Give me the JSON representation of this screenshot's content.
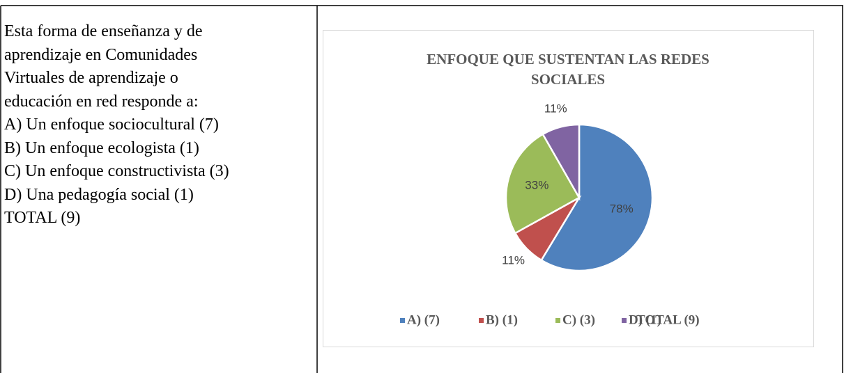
{
  "text_lines": [
    "Esta forma de enseñanza y de",
    "aprendizaje en Comunidades",
    "Virtuales de aprendizaje o",
    "educación en red responde a:",
    "A) Un enfoque sociocultural (7)",
    "B) Un enfoque ecologista (1)",
    "C) Un enfoque constructivista (3)",
    "D) Una pedagogía social (1)",
    "TOTAL (9)"
  ],
  "chart_data": {
    "type": "pie",
    "title_lines": [
      "ENFOQUE  QUE SUSTENTAN LAS REDES",
      "SOCIALES"
    ],
    "categories": [
      "A) (7)",
      "B) (1)",
      "C) (3)",
      "D) (1)"
    ],
    "values": [
      78,
      11,
      33,
      11
    ],
    "value_labels": [
      "78%",
      "11%",
      "33%",
      "11%"
    ],
    "colors": [
      "#4f81bd",
      "#c0504d",
      "#9bbb59",
      "#8064a2"
    ],
    "legend_note": "TOTAL (9)",
    "legend": "bottom"
  }
}
